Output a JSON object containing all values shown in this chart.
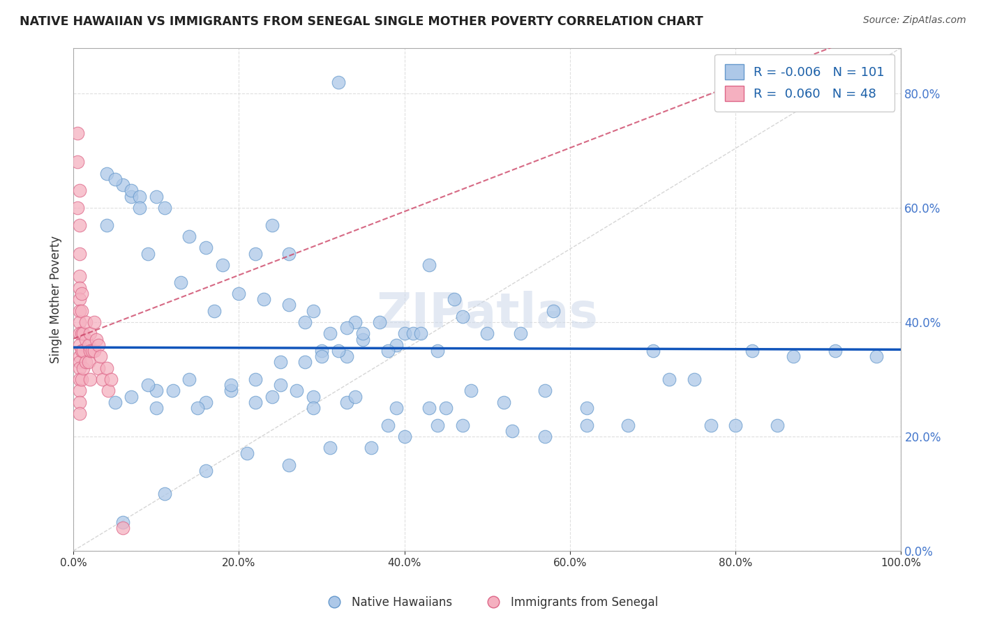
{
  "title": "NATIVE HAWAIIAN VS IMMIGRANTS FROM SENEGAL SINGLE MOTHER POVERTY CORRELATION CHART",
  "source": "Source: ZipAtlas.com",
  "ylabel": "Single Mother Poverty",
  "xlim": [
    0.0,
    1.0
  ],
  "ylim": [
    0.0,
    0.88
  ],
  "x_ticks": [
    0.0,
    0.2,
    0.4,
    0.6,
    0.8,
    1.0
  ],
  "x_tick_labels": [
    "0.0%",
    "",
    "",
    "",
    "",
    "100.0%"
  ],
  "y_ticks": [
    0.0,
    0.2,
    0.4,
    0.6,
    0.8
  ],
  "y_tick_labels": [
    "0.0%",
    "20.0%",
    "40.0%",
    "60.0%",
    "80.0%"
  ],
  "R_blue": -0.006,
  "N_blue": 101,
  "R_pink": 0.06,
  "N_pink": 48,
  "blue_color": "#adc8e8",
  "pink_color": "#f5b0c0",
  "blue_edge": "#6699cc",
  "pink_edge": "#dd6688",
  "regression_blue_color": "#1155bb",
  "regression_pink_color": "#cc4466",
  "diagonal_color": "#cccccc",
  "watermark": "ZIPatlas",
  "blue_scatter_x": [
    0.32,
    0.04,
    0.06,
    0.07,
    0.1,
    0.11,
    0.04,
    0.09,
    0.05,
    0.07,
    0.08,
    0.08,
    0.22,
    0.14,
    0.24,
    0.16,
    0.26,
    0.18,
    0.13,
    0.2,
    0.23,
    0.17,
    0.26,
    0.29,
    0.28,
    0.34,
    0.33,
    0.31,
    0.37,
    0.4,
    0.35,
    0.39,
    0.3,
    0.33,
    0.25,
    0.28,
    0.32,
    0.41,
    0.44,
    0.5,
    0.54,
    0.58,
    0.47,
    0.43,
    0.46,
    0.42,
    0.38,
    0.3,
    0.35,
    0.27,
    0.22,
    0.19,
    0.16,
    0.12,
    0.1,
    0.07,
    0.05,
    0.15,
    0.1,
    0.22,
    0.25,
    0.29,
    0.33,
    0.38,
    0.43,
    0.48,
    0.52,
    0.57,
    0.62,
    0.67,
    0.72,
    0.77,
    0.82,
    0.87,
    0.92,
    0.97,
    0.7,
    0.75,
    0.8,
    0.85,
    0.62,
    0.57,
    0.53,
    0.47,
    0.44,
    0.4,
    0.36,
    0.31,
    0.26,
    0.21,
    0.16,
    0.11,
    0.06,
    0.09,
    0.14,
    0.19,
    0.24,
    0.29,
    0.34,
    0.39,
    0.45
  ],
  "blue_scatter_y": [
    0.82,
    0.66,
    0.64,
    0.62,
    0.62,
    0.6,
    0.57,
    0.52,
    0.65,
    0.63,
    0.62,
    0.6,
    0.52,
    0.55,
    0.57,
    0.53,
    0.52,
    0.5,
    0.47,
    0.45,
    0.44,
    0.42,
    0.43,
    0.42,
    0.4,
    0.4,
    0.39,
    0.38,
    0.4,
    0.38,
    0.37,
    0.36,
    0.35,
    0.34,
    0.33,
    0.33,
    0.35,
    0.38,
    0.35,
    0.38,
    0.38,
    0.42,
    0.41,
    0.5,
    0.44,
    0.38,
    0.35,
    0.34,
    0.38,
    0.28,
    0.26,
    0.28,
    0.26,
    0.28,
    0.25,
    0.27,
    0.26,
    0.25,
    0.28,
    0.3,
    0.29,
    0.27,
    0.26,
    0.22,
    0.25,
    0.28,
    0.26,
    0.28,
    0.25,
    0.22,
    0.3,
    0.22,
    0.35,
    0.34,
    0.35,
    0.34,
    0.35,
    0.3,
    0.22,
    0.22,
    0.22,
    0.2,
    0.21,
    0.22,
    0.22,
    0.2,
    0.18,
    0.18,
    0.15,
    0.17,
    0.14,
    0.1,
    0.05,
    0.29,
    0.3,
    0.29,
    0.27,
    0.25,
    0.27,
    0.25,
    0.25
  ],
  "pink_scatter_x": [
    0.005,
    0.005,
    0.005,
    0.007,
    0.007,
    0.007,
    0.007,
    0.007,
    0.007,
    0.007,
    0.007,
    0.007,
    0.007,
    0.007,
    0.007,
    0.007,
    0.007,
    0.007,
    0.007,
    0.007,
    0.01,
    0.01,
    0.01,
    0.01,
    0.01,
    0.012,
    0.012,
    0.012,
    0.015,
    0.015,
    0.015,
    0.018,
    0.018,
    0.02,
    0.02,
    0.02,
    0.023,
    0.025,
    0.025,
    0.028,
    0.03,
    0.03,
    0.033,
    0.035,
    0.04,
    0.042,
    0.045,
    0.06
  ],
  "pink_scatter_y": [
    0.73,
    0.68,
    0.6,
    0.63,
    0.57,
    0.52,
    0.48,
    0.46,
    0.44,
    0.42,
    0.4,
    0.38,
    0.36,
    0.34,
    0.33,
    0.32,
    0.3,
    0.28,
    0.26,
    0.24,
    0.45,
    0.42,
    0.38,
    0.35,
    0.3,
    0.38,
    0.35,
    0.32,
    0.4,
    0.37,
    0.33,
    0.36,
    0.33,
    0.38,
    0.35,
    0.3,
    0.35,
    0.4,
    0.35,
    0.37,
    0.36,
    0.32,
    0.34,
    0.3,
    0.32,
    0.28,
    0.3,
    0.04
  ]
}
